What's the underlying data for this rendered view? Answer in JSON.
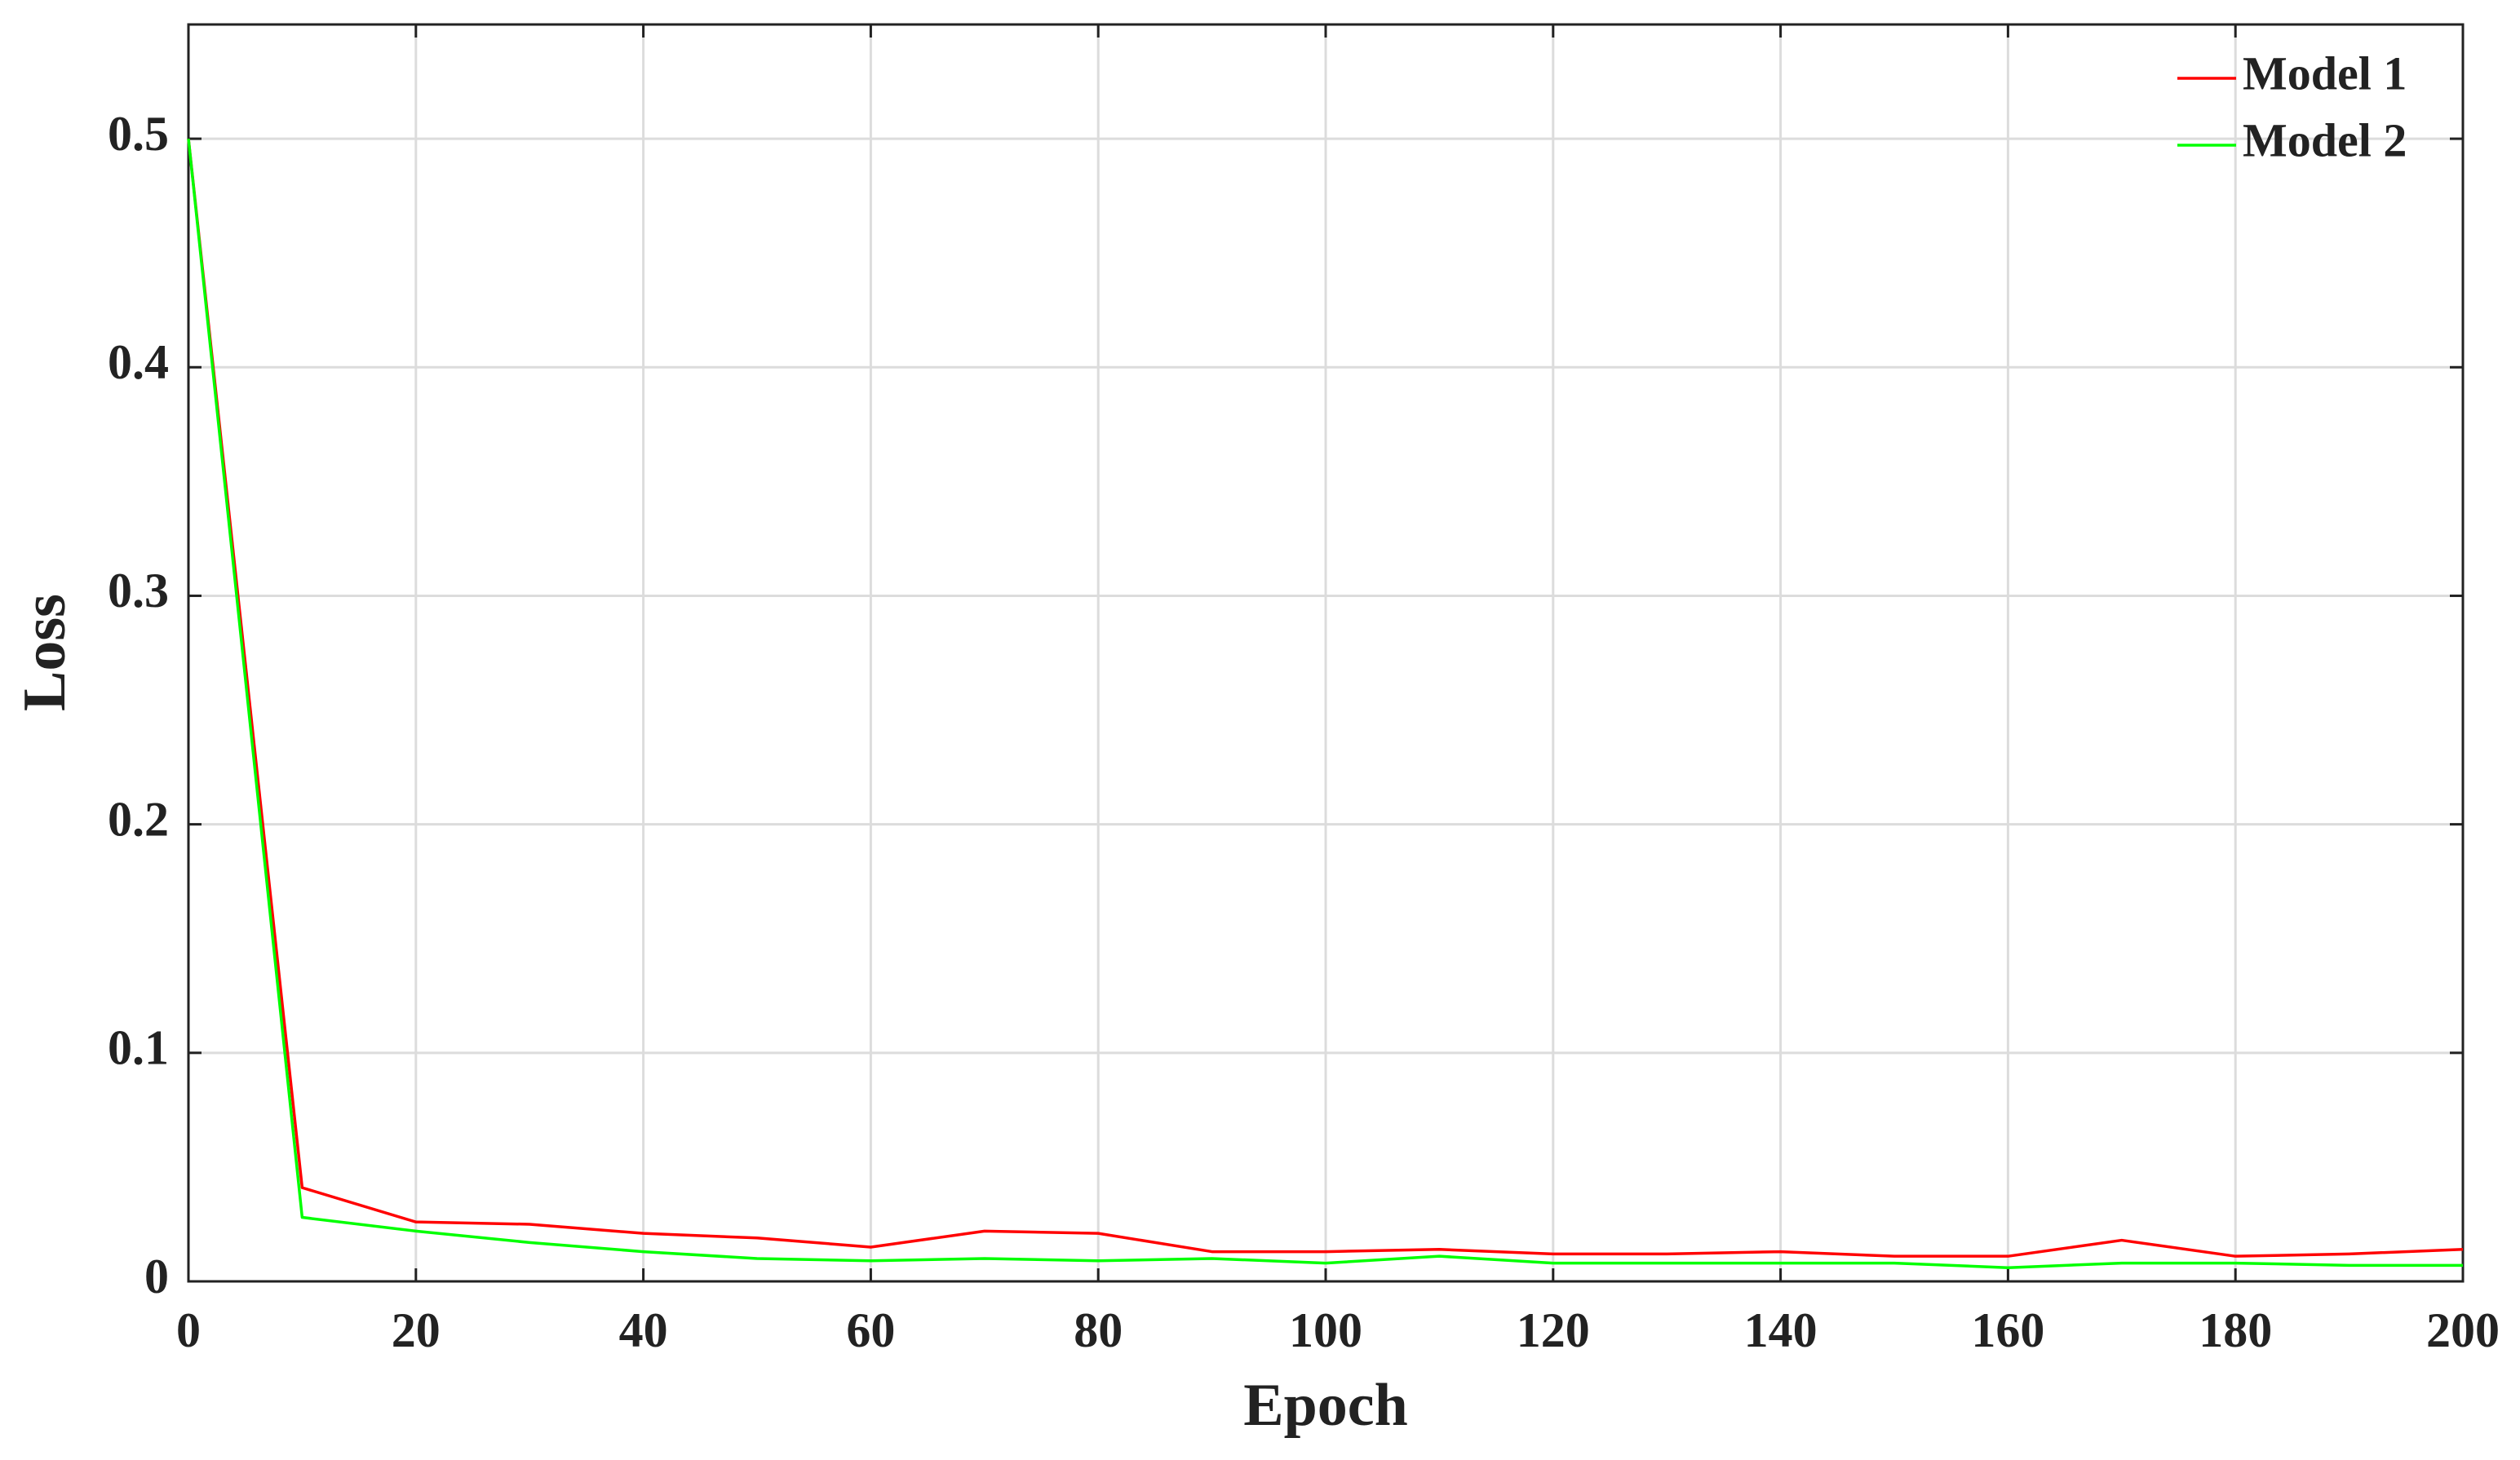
{
  "chart_data": {
    "type": "line",
    "x_label": "Epoch",
    "y_label": "Loss",
    "x": [
      0,
      10,
      20,
      30,
      40,
      50,
      60,
      70,
      80,
      90,
      100,
      110,
      120,
      130,
      140,
      150,
      160,
      170,
      180,
      190,
      200
    ],
    "series": [
      {
        "name": "Model 1",
        "color": "#ff0000",
        "values": [
          0.5,
          0.041,
          0.026,
          0.025,
          0.021,
          0.019,
          0.015,
          0.022,
          0.021,
          0.013,
          0.013,
          0.014,
          0.012,
          0.012,
          0.013,
          0.011,
          0.011,
          0.018,
          0.011,
          0.012,
          0.014
        ]
      },
      {
        "name": "Model 2",
        "color": "#00ff00",
        "values": [
          0.5,
          0.028,
          0.022,
          0.017,
          0.013,
          0.01,
          0.009,
          0.01,
          0.009,
          0.01,
          0.008,
          0.011,
          0.008,
          0.008,
          0.008,
          0.008,
          0.006,
          0.008,
          0.008,
          0.007,
          0.007
        ]
      }
    ],
    "xlim": [
      0,
      200
    ],
    "xticks": [
      0,
      20,
      40,
      60,
      80,
      100,
      120,
      140,
      160,
      180,
      200
    ],
    "ylim": [
      0,
      0.55
    ],
    "yticks": [
      0,
      0.1,
      0.2,
      0.3,
      0.4,
      0.5
    ],
    "grid": true,
    "legend": "top-right"
  }
}
